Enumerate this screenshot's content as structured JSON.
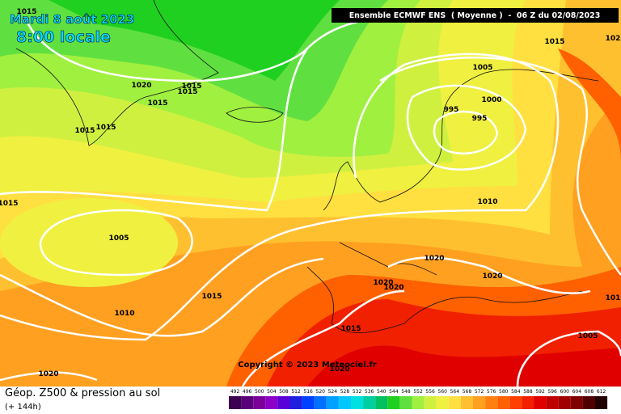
{
  "header": {
    "date": "Mardi 8 août 2023",
    "local_time": "8:00 locale",
    "run": "Ensemble ECMWF ENS  ( Moyenne )  -  06 Z du 02/08/2023"
  },
  "copyright": "Copyright © 2023 Meteociel.fr",
  "footer": {
    "title": "Géop. Z500 & pression au sol",
    "lead": "(+ 144h)"
  },
  "isobar_labels": [
    "1015",
    "1020",
    "1015",
    "1015",
    "1015",
    "1015",
    "1015",
    "1015",
    "1005",
    "1010",
    "1015",
    "1020",
    "1005",
    "1015",
    "102",
    "995",
    "1000",
    "995",
    "1010",
    "1020",
    "1020",
    "1020",
    "1020",
    "1015",
    "1020",
    "1005",
    "101"
  ],
  "scale": {
    "values": [
      492,
      496,
      500,
      504,
      508,
      512,
      516,
      520,
      524,
      528,
      532,
      536,
      540,
      544,
      548,
      552,
      556,
      560,
      564,
      568,
      572,
      576,
      580,
      584,
      588,
      592,
      596,
      600,
      604,
      608,
      612
    ],
    "colors": [
      "#3c0050",
      "#5a0078",
      "#7a0099",
      "#8c00c8",
      "#5a00d8",
      "#2020e0",
      "#0040ff",
      "#0070ff",
      "#00a0ff",
      "#00c8ff",
      "#00e0e0",
      "#00d0a0",
      "#00c060",
      "#20d020",
      "#60e040",
      "#a0f040",
      "#d0f040",
      "#f0f040",
      "#ffe040",
      "#ffc030",
      "#ffa020",
      "#ff8010",
      "#ff6000",
      "#ff4000",
      "#f02000",
      "#e00000",
      "#c00000",
      "#a00000",
      "#800000",
      "#500000",
      "#200000"
    ]
  }
}
